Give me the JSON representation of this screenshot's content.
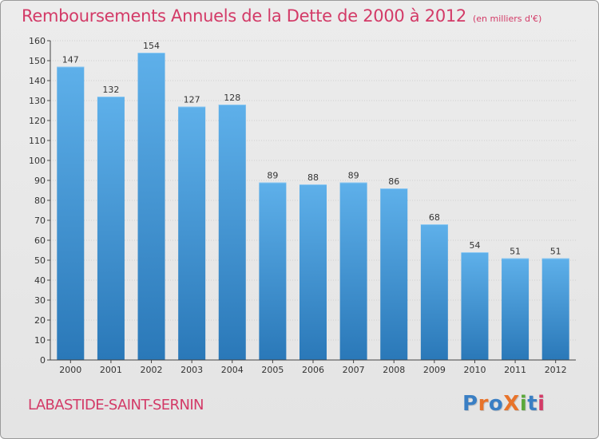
{
  "header": {
    "title": "Remboursements Annuels de la Dette de 2000 à 2012",
    "unit": "(en milliers d'€)"
  },
  "footer": {
    "commune": "LABASTIDE-SAINT-SERNIN",
    "logo_letters": [
      {
        "char": "P",
        "color": "#3a7fc4"
      },
      {
        "char": "r",
        "color": "#e8732a"
      },
      {
        "char": "o",
        "color": "#3a7fc4"
      },
      {
        "char": "X",
        "color": "#e8732a"
      },
      {
        "char": "i",
        "color": "#5aa83a"
      },
      {
        "char": "t",
        "color": "#3a7fc4"
      },
      {
        "char": "i",
        "color": "#d33a67"
      }
    ]
  },
  "colors": {
    "accent": "#d33a67",
    "bar_light": "#5eb0ea",
    "bar_dark": "#2a78b8",
    "axis": "#444444",
    "grid": "#cfcfcf"
  },
  "chart_data": {
    "type": "bar",
    "categories": [
      "2000",
      "2001",
      "2002",
      "2003",
      "2004",
      "2005",
      "2006",
      "2007",
      "2008",
      "2009",
      "2010",
      "2011",
      "2012"
    ],
    "values": [
      147,
      132,
      154,
      127,
      128,
      89,
      88,
      89,
      86,
      68,
      54,
      51,
      51
    ],
    "ylim": [
      0,
      160
    ],
    "yticks": [
      0,
      10,
      20,
      30,
      40,
      50,
      60,
      70,
      80,
      90,
      100,
      110,
      120,
      130,
      140,
      150,
      160
    ],
    "grid": true,
    "data_labels": true
  }
}
